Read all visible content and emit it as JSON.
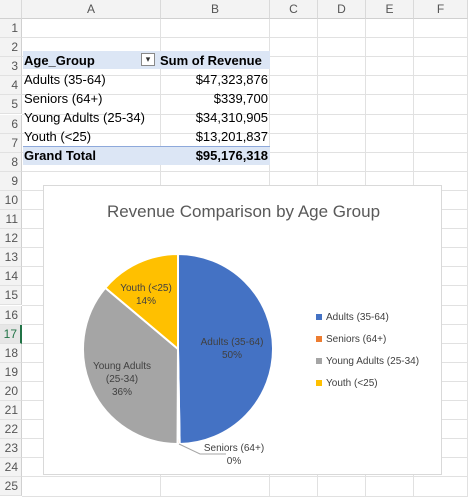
{
  "columns": [
    "A",
    "B",
    "C",
    "D",
    "E",
    "F"
  ],
  "rows": [
    "1",
    "2",
    "3",
    "4",
    "5",
    "6",
    "7",
    "8",
    "9",
    "10",
    "11",
    "12",
    "13",
    "14",
    "15",
    "16",
    "17",
    "18",
    "19",
    "20",
    "21",
    "22",
    "23",
    "24",
    "25"
  ],
  "selected_row": "17",
  "pivot": {
    "header_a": "Age_Group",
    "header_b": "Sum of Revenue",
    "rows": [
      {
        "label": "Adults (35-64)",
        "value": "$47,323,876"
      },
      {
        "label": "Seniors (64+)",
        "value": "$339,700"
      },
      {
        "label": "Young Adults (25-34)",
        "value": "$34,310,905"
      },
      {
        "label": "Youth (<25)",
        "value": "$13,201,837"
      }
    ],
    "total_label": "Grand Total",
    "total_value": "$95,176,318"
  },
  "chart_data": {
    "type": "pie",
    "title": "Revenue Comparison by Age Group",
    "categories": [
      "Adults (35-64)",
      "Seniors (64+)",
      "Young Adults (25-34)",
      "Youth (<25)"
    ],
    "values": [
      47323876,
      339700,
      34310905,
      13201837
    ],
    "percent_labels": [
      "50%",
      "0%",
      "36%",
      "14%"
    ],
    "colors": [
      "#4472c4",
      "#ed7d31",
      "#a5a5a5",
      "#ffc000"
    ],
    "legend_position": "right"
  }
}
